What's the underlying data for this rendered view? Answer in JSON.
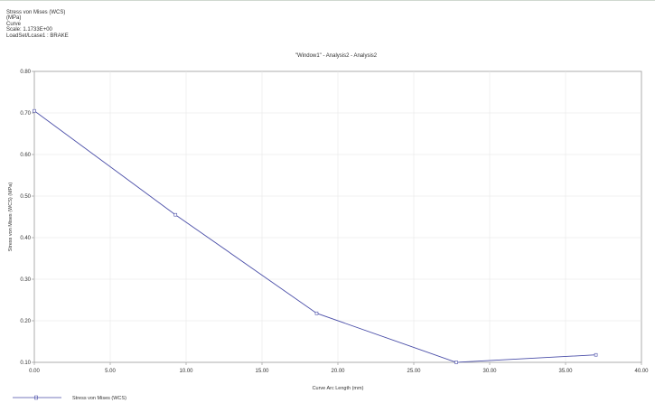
{
  "header": {
    "lines": [
      "Stress von Mises (WCS)",
      "(MPa)",
      "Curve",
      "Scale: 1.1733E+00",
      "LoadSet/Lcase1 : BRAKE"
    ]
  },
  "chart_data": {
    "type": "line",
    "title": "\"Window1\" - Analysis2 - Analysis2",
    "xlabel": "Curve Arc Length (mm)",
    "ylabel": "Stress von Mises (WCS) (MPa)",
    "xlim": [
      0,
      40
    ],
    "ylim": [
      0.1,
      0.8
    ],
    "x_tick_labels": [
      "0.00",
      "5.00",
      "10.00",
      "15.00",
      "20.00",
      "25.00",
      "30.00",
      "35.00",
      "40.00"
    ],
    "y_tick_labels": [
      "0.10",
      "0.20",
      "0.30",
      "0.40",
      "0.50",
      "0.60",
      "0.70",
      "0.80"
    ],
    "grid": true,
    "legend_position": "bottom-left",
    "series": [
      {
        "name": "Stress von Mises (WCS)",
        "color": "#4a4ea8",
        "x": [
          0.0,
          9.3,
          18.6,
          27.8,
          37.0
        ],
        "y": [
          0.705,
          0.455,
          0.218,
          0.1,
          0.118
        ]
      }
    ]
  }
}
